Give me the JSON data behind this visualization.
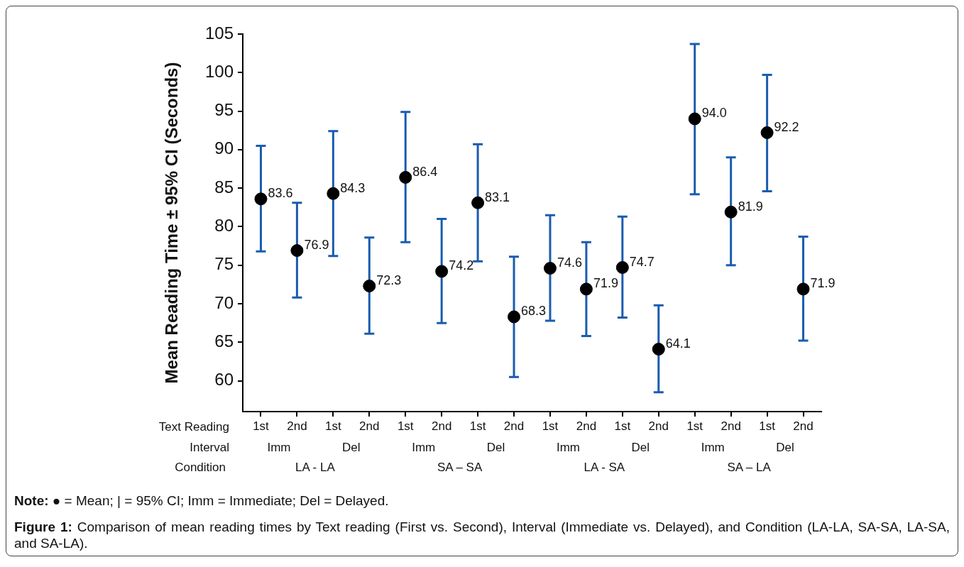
{
  "chart_data": {
    "type": "scatter",
    "ylabel": "Mean Reading Time ± 95% CI (Seconds)",
    "categories": [
      "1st",
      "2nd",
      "1st",
      "2nd",
      "1st",
      "2nd",
      "1st",
      "2nd",
      "1st",
      "2nd",
      "1st",
      "2nd",
      "1st",
      "2nd",
      "1st",
      "2nd"
    ],
    "series": [
      {
        "color": "#000000",
        "values": [
          83.6,
          76.9,
          84.3,
          72.3,
          86.4,
          74.2,
          83.1,
          68.3,
          74.6,
          71.9,
          74.7,
          64.1,
          94.0,
          81.9,
          92.2,
          71.9
        ],
        "value_labels": [
          "83.6",
          "76.9",
          "84.3",
          "72.3",
          "86.4",
          "74.2",
          "83.1",
          "68.3",
          "74.6",
          "71.9",
          "74.7",
          "64.1",
          "94.0",
          "81.9",
          "92.2",
          "71.9"
        ],
        "errors": [
          [
            76.8,
            90.5
          ],
          [
            70.8,
            83.1
          ],
          [
            76.2,
            92.4
          ],
          [
            66.1,
            78.6
          ],
          [
            78.0,
            94.9
          ],
          [
            67.5,
            81.0
          ],
          [
            75.5,
            90.7
          ],
          [
            60.5,
            76.1
          ],
          [
            67.8,
            81.5
          ],
          [
            65.8,
            78.0
          ],
          [
            68.2,
            81.3
          ],
          [
            58.5,
            69.8
          ],
          [
            84.2,
            103.7
          ],
          [
            75.0,
            89.0
          ],
          [
            84.6,
            99.7
          ],
          [
            65.2,
            78.7
          ]
        ]
      }
    ],
    "ylim": [
      56,
      105
    ],
    "yticks": [
      60,
      65,
      70,
      75,
      80,
      85,
      90,
      95,
      100,
      105
    ],
    "grid": false,
    "legend": false,
    "marker": "circle",
    "annotations": [
      "Text Reading",
      "Interval",
      "Condition",
      "Imm",
      "Del",
      "Imm",
      "Del",
      "Imm",
      "Del",
      "Imm",
      "Del",
      "LA - LA",
      "SA – SA",
      "LA - SA",
      "SA – LA",
      "Note: ● = Mean; | = 95% CI; Imm = Immediate; Del = Delayed.",
      "Figure 1: Comparison of mean reading times by Text reading (First vs. Second), Interval (Immediate vs. Delayed), and Condition (LA-LA, SA-SA, LA-SA, and SA-LA)."
    ]
  }
}
